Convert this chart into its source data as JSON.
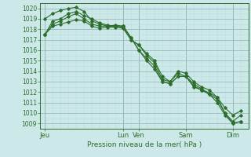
{
  "xlabel": "Pression niveau de la mer( hPa )",
  "bg_color": "#cce8e8",
  "grid_color_major": "#99bbbb",
  "grid_color_minor": "#bbdddd",
  "line_color": "#2d6e2d",
  "ylim": [
    1008.5,
    1020.5
  ],
  "yticks": [
    1009,
    1010,
    1011,
    1012,
    1013,
    1014,
    1015,
    1016,
    1017,
    1018,
    1019,
    1020
  ],
  "x_tick_labels": [
    "Jeu",
    "Lun",
    "Ven",
    "Sam",
    "Dim"
  ],
  "x_tick_positions": [
    0,
    5,
    6,
    9,
    12
  ],
  "xlim": [
    -0.3,
    13.0
  ],
  "series": [
    [
      0.0,
      1017.5,
      0.5,
      1018.8,
      1.0,
      1019.0,
      1.5,
      1019.5,
      2.0,
      1019.7,
      2.5,
      1019.3,
      3.0,
      1019.0,
      3.5,
      1018.6,
      4.0,
      1018.4,
      4.5,
      1018.3,
      5.0,
      1018.2,
      5.5,
      1017.0,
      6.0,
      1016.5,
      6.5,
      1015.5,
      7.0,
      1014.8,
      7.5,
      1013.2,
      8.0,
      1013.0,
      8.5,
      1014.0,
      9.0,
      1013.8,
      9.5,
      1013.0,
      10.0,
      1012.5,
      10.5,
      1012.2,
      11.0,
      1011.5,
      11.5,
      1010.5,
      12.0,
      1009.8,
      12.5,
      1010.2
    ],
    [
      0.0,
      1019.0,
      0.5,
      1019.5,
      1.0,
      1019.8,
      1.5,
      1020.0,
      2.0,
      1020.1,
      2.5,
      1019.7,
      3.0,
      1018.8,
      3.5,
      1018.5,
      4.0,
      1018.3,
      4.5,
      1018.4,
      5.0,
      1018.3,
      5.5,
      1017.2,
      6.0,
      1016.0,
      6.5,
      1015.2,
      7.0,
      1014.5,
      7.5,
      1013.0,
      8.0,
      1012.8,
      8.5,
      1013.5,
      9.0,
      1013.5,
      9.5,
      1012.6,
      10.0,
      1012.2,
      10.5,
      1011.8,
      11.0,
      1011.0,
      11.5,
      1009.8,
      12.0,
      1009.0,
      12.5,
      1009.2
    ],
    [
      0.0,
      1017.5,
      0.5,
      1018.5,
      1.0,
      1018.8,
      1.5,
      1019.2,
      2.0,
      1019.5,
      2.5,
      1019.0,
      3.0,
      1018.5,
      3.5,
      1018.3,
      4.0,
      1018.3,
      4.5,
      1018.3,
      5.0,
      1018.3,
      5.5,
      1017.2,
      6.0,
      1016.0,
      6.5,
      1015.0,
      7.0,
      1014.2,
      7.5,
      1013.0,
      8.0,
      1012.8,
      8.5,
      1013.5,
      9.0,
      1013.5,
      9.5,
      1012.5,
      10.0,
      1012.2,
      10.5,
      1011.8,
      11.0,
      1011.3,
      11.5,
      1010.0,
      12.0,
      1009.0,
      12.5,
      1009.2
    ],
    [
      0.0,
      1017.5,
      0.5,
      1018.3,
      1.0,
      1018.5,
      1.5,
      1018.7,
      2.0,
      1018.9,
      2.5,
      1018.8,
      3.0,
      1018.3,
      3.5,
      1018.1,
      4.0,
      1018.2,
      4.5,
      1018.2,
      5.0,
      1018.1,
      5.5,
      1017.0,
      6.0,
      1016.5,
      6.5,
      1015.7,
      7.0,
      1015.0,
      7.5,
      1013.5,
      8.0,
      1013.0,
      8.5,
      1013.8,
      9.0,
      1013.5,
      9.5,
      1012.8,
      10.0,
      1012.3,
      10.5,
      1011.9,
      11.0,
      1011.5,
      11.5,
      1010.0,
      12.0,
      1009.2,
      12.5,
      1009.8
    ]
  ]
}
